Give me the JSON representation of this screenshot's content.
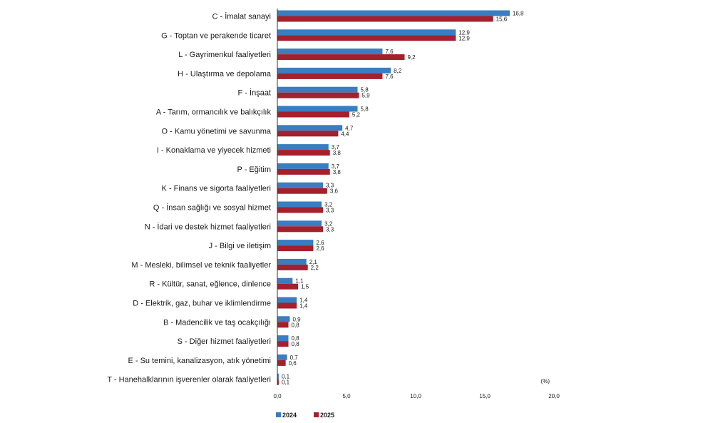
{
  "chart_data": {
    "type": "bar",
    "orientation": "horizontal",
    "unit": "(%)",
    "xlim": [
      0,
      20
    ],
    "ticks": [
      "0,0",
      "5,0",
      "10,0",
      "15,0",
      "20,0"
    ],
    "tick_values": [
      0,
      5,
      10,
      15,
      20
    ],
    "grid": false,
    "legend_position": "bottom-left",
    "categories": [
      "C - İmalat sanayi",
      "G - Toptan ve perakende ticaret",
      "L - Gayrimenkul faaliyetleri",
      "H - Ulaştırma ve depolama",
      "F - İnşaat",
      "A - Tarım, ormancılık ve balıkçılık",
      "O - Kamu yönetimi ve savunma",
      "I - Konaklama ve yiyecek hizmeti",
      "P - Eğitim",
      "K - Finans ve sigorta faaliyetleri",
      "Q - İnsan sağlığı ve sosyal hizmet",
      "N - İdari ve destek hizmet faaliyetleri",
      "J - Bilgi ve iletişim",
      "M - Mesleki, bilimsel ve teknik faaliyetler",
      "R - Kültür, sanat, eğlence, dinlence",
      "D - Elektrik, gaz, buhar ve iklimlendirme",
      "B - Madencilik ve taş ocakçılığı",
      "S - Diğer hizmet faaliyetleri",
      "E - Su temini, kanalizasyon, atık yönetimi",
      "T - Hanehalklarının işverenler olarak faaliyetleri"
    ],
    "series": [
      {
        "name": "2024",
        "color": "#3a7dc0",
        "values": [
          16.8,
          12.9,
          7.6,
          8.2,
          5.8,
          5.8,
          4.7,
          3.7,
          3.7,
          3.3,
          3.2,
          3.2,
          2.6,
          2.1,
          1.1,
          1.4,
          0.9,
          0.8,
          0.7,
          0.1
        ],
        "labels": [
          "16,8",
          "12,9",
          "7,6",
          "8,2",
          "5,8",
          "5,8",
          "4,7",
          "3,7",
          "3,7",
          "3,3",
          "3,2",
          "3,2",
          "2,6",
          "2,1",
          "1,1",
          "1,4",
          "0,9",
          "0,8",
          "0,7",
          "0,1"
        ]
      },
      {
        "name": "2025",
        "color": "#a3202d",
        "values": [
          15.6,
          12.9,
          9.2,
          7.6,
          5.9,
          5.2,
          4.4,
          3.8,
          3.8,
          3.6,
          3.3,
          3.3,
          2.6,
          2.2,
          1.5,
          1.4,
          0.8,
          0.8,
          0.6,
          0.1
        ],
        "labels": [
          "15,6",
          "12,9",
          "9,2",
          "7,6",
          "5,9",
          "5,2",
          "4,4",
          "3,8",
          "3,8",
          "3,6",
          "3,3",
          "3,3",
          "2,6",
          "2,2",
          "1,5",
          "1,4",
          "0,8",
          "0,8",
          "0,6",
          "0,1"
        ]
      }
    ]
  }
}
